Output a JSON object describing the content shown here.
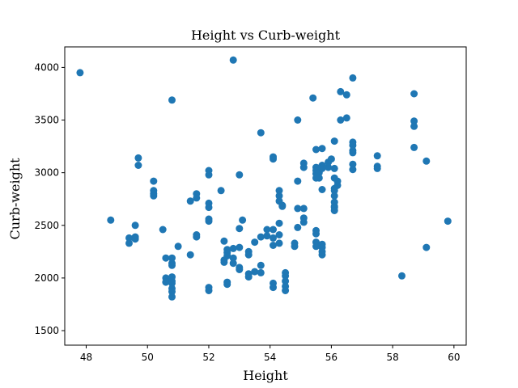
{
  "chart_data": {
    "type": "scatter",
    "title": "Height vs Curb-weight",
    "xlabel": "Height",
    "ylabel": "Curb-weight",
    "xlim": [
      47.3,
      60.4
    ],
    "ylim": [
      1362,
      4195
    ],
    "xticks": [
      48,
      50,
      52,
      54,
      56,
      58,
      60
    ],
    "yticks": [
      1500,
      2000,
      2500,
      3000,
      3500,
      4000
    ],
    "grid": false,
    "legend": "none",
    "marker_color": "#1f77b4",
    "series": [
      {
        "x": [
          47.8,
          48.8,
          49.4,
          49.4,
          49.6,
          49.6,
          49.6,
          49.7,
          49.7,
          50.2,
          50.2,
          50.2,
          50.2,
          50.5,
          50.6,
          50.6,
          50.6,
          50.8,
          50.8,
          50.8,
          50.8,
          50.8,
          50.8,
          50.8,
          50.8,
          50.8,
          50.8,
          51.0,
          51.4,
          51.4,
          51.6,
          51.6,
          51.6,
          51.6,
          52.0,
          52.0,
          52.0,
          52.0,
          52.0,
          52.0,
          52.0,
          52.0,
          52.4,
          52.5,
          52.5,
          52.5,
          52.6,
          52.6,
          52.6,
          52.6,
          52.6,
          52.8,
          52.8,
          52.8,
          52.8,
          53.0,
          53.0,
          53.0,
          53.0,
          53.0,
          53.1,
          53.3,
          53.3,
          53.3,
          53.3,
          53.5,
          53.5,
          53.7,
          53.7,
          53.7,
          53.7,
          53.9,
          53.9,
          54.1,
          54.1,
          54.1,
          54.1,
          54.1,
          54.1,
          54.1,
          54.3,
          54.3,
          54.3,
          54.3,
          54.3,
          54.3,
          54.4,
          54.4,
          54.5,
          54.5,
          54.5,
          54.5,
          54.5,
          54.8,
          54.8,
          54.9,
          54.9,
          54.9,
          54.9,
          55.1,
          55.1,
          55.1,
          55.1,
          55.1,
          55.4,
          55.5,
          55.5,
          55.5,
          55.5,
          55.5,
          55.5,
          55.5,
          55.5,
          55.5,
          55.6,
          55.6,
          55.7,
          55.7,
          55.7,
          55.7,
          55.7,
          55.7,
          55.7,
          55.7,
          55.9,
          55.9,
          56.0,
          56.1,
          56.1,
          56.1,
          56.1,
          56.1,
          56.1,
          56.1,
          56.1,
          56.1,
          56.1,
          56.2,
          56.2,
          56.3,
          56.3,
          56.5,
          56.5,
          56.7,
          56.7,
          56.7,
          56.7,
          56.7,
          56.7,
          56.7,
          57.5,
          57.5,
          57.5,
          58.3,
          58.7,
          58.7,
          58.7,
          58.7,
          59.1,
          59.1,
          59.8
        ],
        "y": [
          3950,
          2550,
          2380,
          2330,
          2500,
          2390,
          2370,
          3140,
          3070,
          2920,
          2830,
          2800,
          2780,
          2460,
          2190,
          2000,
          1960,
          3690,
          2190,
          2140,
          2120,
          2010,
          1970,
          1950,
          1900,
          1870,
          1820,
          2300,
          2730,
          2220,
          2800,
          2760,
          2410,
          2390,
          3020,
          2980,
          2710,
          2670,
          2560,
          2540,
          1910,
          1880,
          2830,
          2350,
          2170,
          2150,
          2270,
          2240,
          2210,
          1960,
          1940,
          4070,
          2280,
          2190,
          2140,
          2980,
          2470,
          2290,
          2100,
          2080,
          2550,
          2250,
          2220,
          2040,
          2010,
          2340,
          2060,
          3380,
          2390,
          2120,
          2050,
          2460,
          2400,
          3150,
          3130,
          2460,
          2380,
          2310,
          1950,
          1910,
          2830,
          2780,
          2730,
          2520,
          2410,
          2330,
          2690,
          2680,
          2050,
          2020,
          1970,
          1920,
          1880,
          2330,
          2300,
          3500,
          2920,
          2660,
          2480,
          3090,
          3050,
          2660,
          2570,
          2530,
          3710,
          3220,
          3050,
          3020,
          2990,
          2950,
          2450,
          2420,
          2340,
          2300,
          3000,
          2950,
          3230,
          3070,
          3040,
          2840,
          2320,
          2290,
          2250,
          2220,
          3100,
          3050,
          3130,
          3300,
          2950,
          2850,
          2830,
          2780,
          2720,
          2680,
          2670,
          2640,
          3040,
          2920,
          2880,
          3770,
          3500,
          3740,
          3520,
          3900,
          3290,
          3260,
          3210,
          3190,
          3080,
          3030,
          3160,
          3060,
          3040,
          2020,
          3750,
          3490,
          3440,
          3240,
          3110,
          2290,
          2540
        ]
      }
    ]
  }
}
